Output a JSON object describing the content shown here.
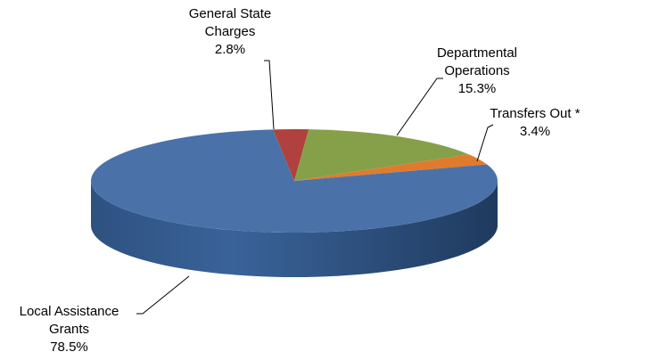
{
  "chart_data": {
    "type": "pie",
    "categories": [
      "General State Charges",
      "Departmental Operations",
      "Transfers Out *",
      "Local Assistance Grants"
    ],
    "values": [
      2.8,
      15.3,
      3.4,
      78.5
    ],
    "value_labels": [
      "2.8%",
      "15.3%",
      "3.4%",
      "78.5%"
    ],
    "colors": [
      "#b0413e",
      "#86a04a",
      "#e07b2e",
      "#4a72a8"
    ]
  }
}
